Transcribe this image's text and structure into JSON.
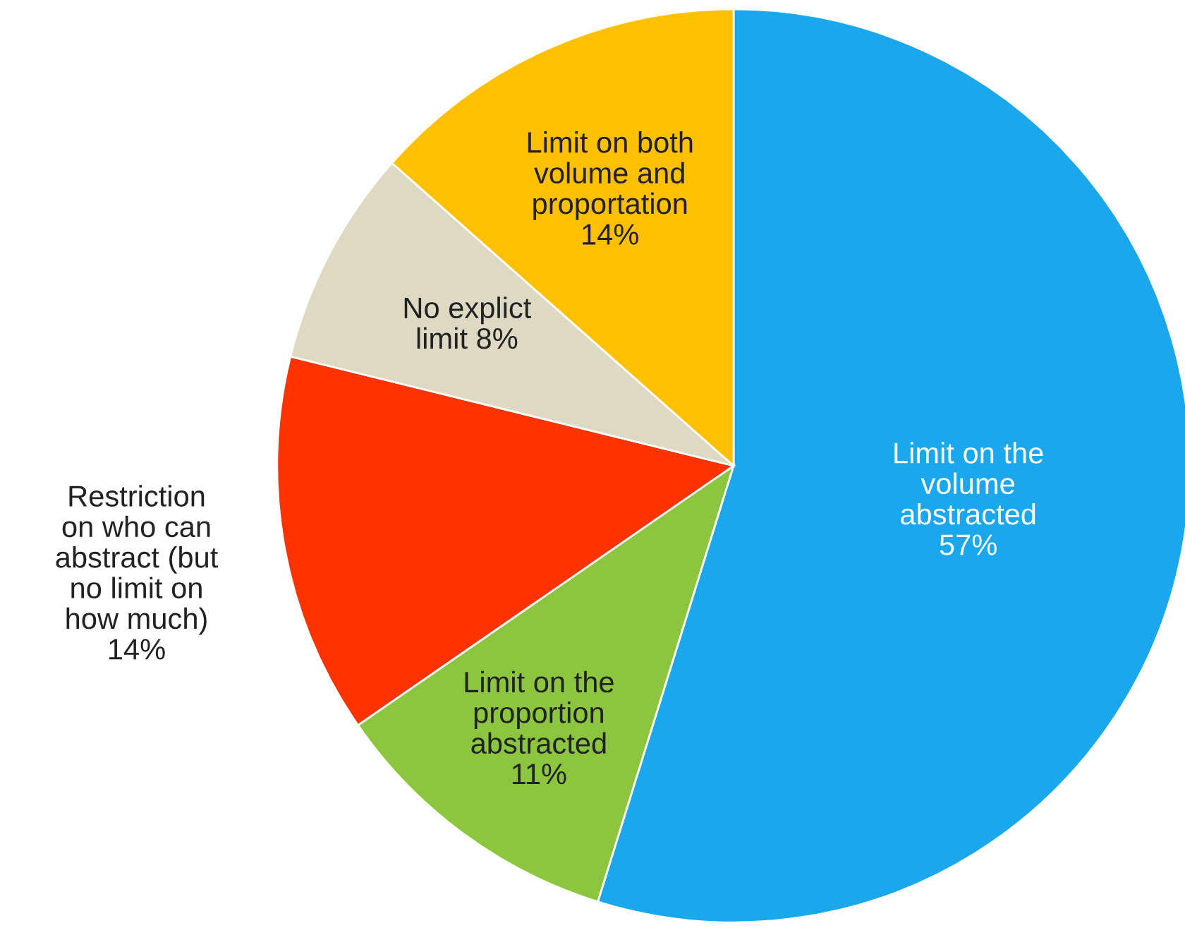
{
  "chart_data": {
    "type": "pie",
    "categories": [
      "Limit on the\nvolume\nabstracted",
      "Limit on the\nproportion\nabstracted",
      "Restriction\non who can\nabstract (but\nno limit on\nhow much)",
      "No explict\nlimit",
      "Limit on both\nvolume and\nproportation"
    ],
    "values": [
      57,
      11,
      14,
      8,
      14
    ],
    "value_labels": [
      "57%",
      "11%",
      "14%",
      "8%",
      "14%"
    ],
    "colors": [
      "#1aa7ec",
      "#8cc63f",
      "#ff3300",
      "#ddd9c3",
      "#ffc000"
    ]
  }
}
